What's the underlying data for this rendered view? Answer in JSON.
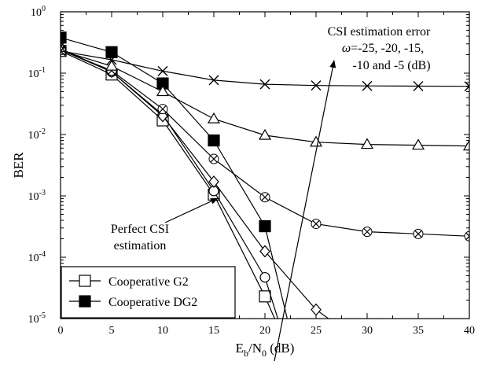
{
  "chart_data": {
    "type": "line",
    "title": "",
    "xlabel": {
      "main": "E",
      "sub1": "b",
      "mid": "/N",
      "sub2": "0",
      "tail": " (dB)"
    },
    "ylabel": "BER",
    "xlim": [
      0,
      40
    ],
    "ylim": [
      1e-05,
      1
    ],
    "yscale": "log",
    "xticks": [
      0,
      5,
      10,
      15,
      20,
      25,
      30,
      35,
      40
    ],
    "yticks": [
      {
        "value": 1,
        "base": "10",
        "exp": "0"
      },
      {
        "value": 0.1,
        "base": "10",
        "exp": "-1"
      },
      {
        "value": 0.01,
        "base": "10",
        "exp": "-2"
      },
      {
        "value": 0.001,
        "base": "10",
        "exp": "-3"
      },
      {
        "value": 0.0001,
        "base": "10",
        "exp": "-4"
      },
      {
        "value": 1e-05,
        "base": "10",
        "exp": "-5"
      }
    ],
    "grid": false,
    "legend": {
      "position": "bottom-left",
      "entries": [
        {
          "label": "Cooperative G2",
          "marker": "square-open"
        },
        {
          "label": "Cooperative DG2",
          "marker": "square-filled"
        }
      ]
    },
    "series": [
      {
        "marker": "square-open",
        "x": [
          0,
          5,
          10,
          15,
          20,
          22
        ],
        "y": [
          0.23,
          0.095,
          0.017,
          0.00105,
          2.3e-05,
          4e-06
        ]
      },
      {
        "marker": "square-filled",
        "x": [
          0,
          5,
          10,
          15,
          20,
          22.5
        ],
        "y": [
          0.38,
          0.22,
          0.068,
          0.008,
          0.00032,
          6e-06
        ]
      },
      {
        "marker": "circle-open",
        "x": [
          0,
          5,
          10,
          15,
          20,
          22
        ],
        "y": [
          0.25,
          0.105,
          0.021,
          0.0012,
          4.7e-05,
          4e-06
        ]
      },
      {
        "marker": "diamond-open",
        "x": [
          0,
          5,
          10,
          15,
          20,
          25,
          30
        ],
        "y": [
          0.24,
          0.105,
          0.02,
          0.0017,
          0.000125,
          1.4e-05,
          3.5e-06
        ]
      },
      {
        "marker": "circle-x",
        "x": [
          0,
          5,
          10,
          15,
          20,
          25,
          30,
          35,
          40
        ],
        "y": [
          0.24,
          0.11,
          0.026,
          0.004,
          0.00095,
          0.00035,
          0.00026,
          0.00024,
          0.00022
        ]
      },
      {
        "marker": "triangle-open",
        "x": [
          0,
          5,
          10,
          15,
          20,
          25,
          30,
          35,
          40
        ],
        "y": [
          0.235,
          0.13,
          0.05,
          0.018,
          0.0097,
          0.0075,
          0.0069,
          0.0067,
          0.0065
        ]
      },
      {
        "marker": "x",
        "x": [
          0,
          5,
          10,
          15,
          20,
          25,
          30,
          35,
          40
        ],
        "y": [
          0.23,
          0.165,
          0.108,
          0.077,
          0.066,
          0.063,
          0.062,
          0.0615,
          0.061
        ]
      }
    ],
    "annotations": [
      {
        "lines": [
          "CSI estimation error",
          "{omega}=-25, -20, -15,",
          "-10 and -5 (dB)"
        ],
        "omega": "ω"
      },
      {
        "lines": [
          "Perfect CSI",
          "estimation"
        ]
      }
    ]
  }
}
